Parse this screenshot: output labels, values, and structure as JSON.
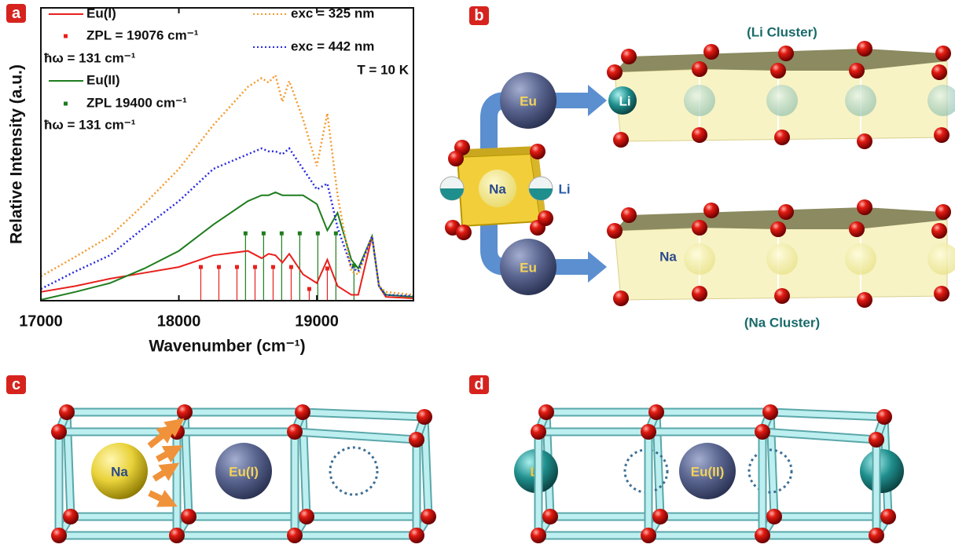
{
  "chart_data": {
    "type": "line",
    "axis_labels": {
      "x": "Wavenumber (cm⁻¹)",
      "y": "Relative Intensity (a.u.)"
    },
    "x": [
      17000,
      17250,
      17500,
      17750,
      18000,
      18250,
      18500,
      18600,
      18650,
      18700,
      18750,
      18800,
      18900,
      19000,
      19076,
      19150,
      19250,
      19300,
      19400,
      19450,
      19500,
      19700
    ],
    "series": [
      {
        "name": "Eu(I)",
        "color": "#e8201c",
        "dash": "solid",
        "values": [
          0.03,
          0.05,
          0.075,
          0.095,
          0.115,
          0.155,
          0.17,
          0.145,
          0.16,
          0.155,
          0.13,
          0.16,
          0.09,
          0.06,
          0.14,
          0.05,
          0.02,
          0.02,
          0.22,
          0.05,
          0.013,
          0.008
        ]
      },
      {
        "name": "Eu(II)",
        "color": "#1e7d1e",
        "dash": "solid",
        "values": [
          0.003,
          0.03,
          0.06,
          0.11,
          0.17,
          0.26,
          0.34,
          0.36,
          0.36,
          0.37,
          0.36,
          0.36,
          0.36,
          0.33,
          0.24,
          0.3,
          0.14,
          0.11,
          0.22,
          0.05,
          0.02,
          0.013
        ]
      },
      {
        "name": "exc = 325 nm",
        "color": "#f39a2e",
        "dash": "dotted",
        "values": [
          0.083,
          0.15,
          0.22,
          0.33,
          0.45,
          0.6,
          0.73,
          0.76,
          0.745,
          0.77,
          0.68,
          0.75,
          0.62,
          0.46,
          0.64,
          0.36,
          0.1,
          0.09,
          0.22,
          0.05,
          0.03,
          0.02
        ]
      },
      {
        "name": "exc = 442 nm",
        "color": "#2a2ae0",
        "dash": "dotted",
        "values": [
          0.04,
          0.1,
          0.155,
          0.25,
          0.34,
          0.45,
          0.5,
          0.52,
          0.51,
          0.51,
          0.5,
          0.52,
          0.45,
          0.38,
          0.4,
          0.25,
          0.115,
          0.1,
          0.22,
          0.05,
          0.02,
          0.016
        ]
      }
    ],
    "sticks": [
      {
        "name": "ZPL = 19076 cm⁻¹",
        "color": "#e8201c",
        "x": [
          18159,
          18290,
          18421,
          18552,
          18683,
          18814,
          18945,
          19076
        ],
        "values": [
          0.115,
          0.115,
          0.115,
          0.115,
          0.115,
          0.115,
          0.04,
          0.11
        ]
      },
      {
        "name": "ZPL 19400 cm⁻¹",
        "color": "#1e7d1e",
        "x": [
          18483,
          18614,
          18745,
          18876,
          19007,
          19138,
          19269
        ],
        "values": [
          0.23,
          0.23,
          0.23,
          0.23,
          0.23,
          0.23,
          0.12
        ]
      }
    ],
    "annotations": [
      "ħω = 131 cm⁻¹",
      "ħω = 131 cm⁻¹",
      "T = 10 K"
    ],
    "xlim": [
      17000,
      19700
    ],
    "xticks": [
      17000,
      18000,
      19000
    ],
    "ylim": [
      0,
      1
    ],
    "yticks": []
  },
  "panels": {
    "labels": [
      "a",
      "b",
      "c",
      "d"
    ],
    "b": {
      "top_cluster": "(Li Cluster)",
      "bottom_cluster": "(Na Cluster)",
      "eu_top": "Eu",
      "eu_bottom": "Eu",
      "center": "Na",
      "center_side": "Li",
      "top_ion": "Li",
      "bottom_ion": "Na"
    },
    "c": {
      "ion": "Na",
      "center": "Eu(I)"
    },
    "d": {
      "ion": "Li",
      "center": "Eu(II)"
    }
  }
}
